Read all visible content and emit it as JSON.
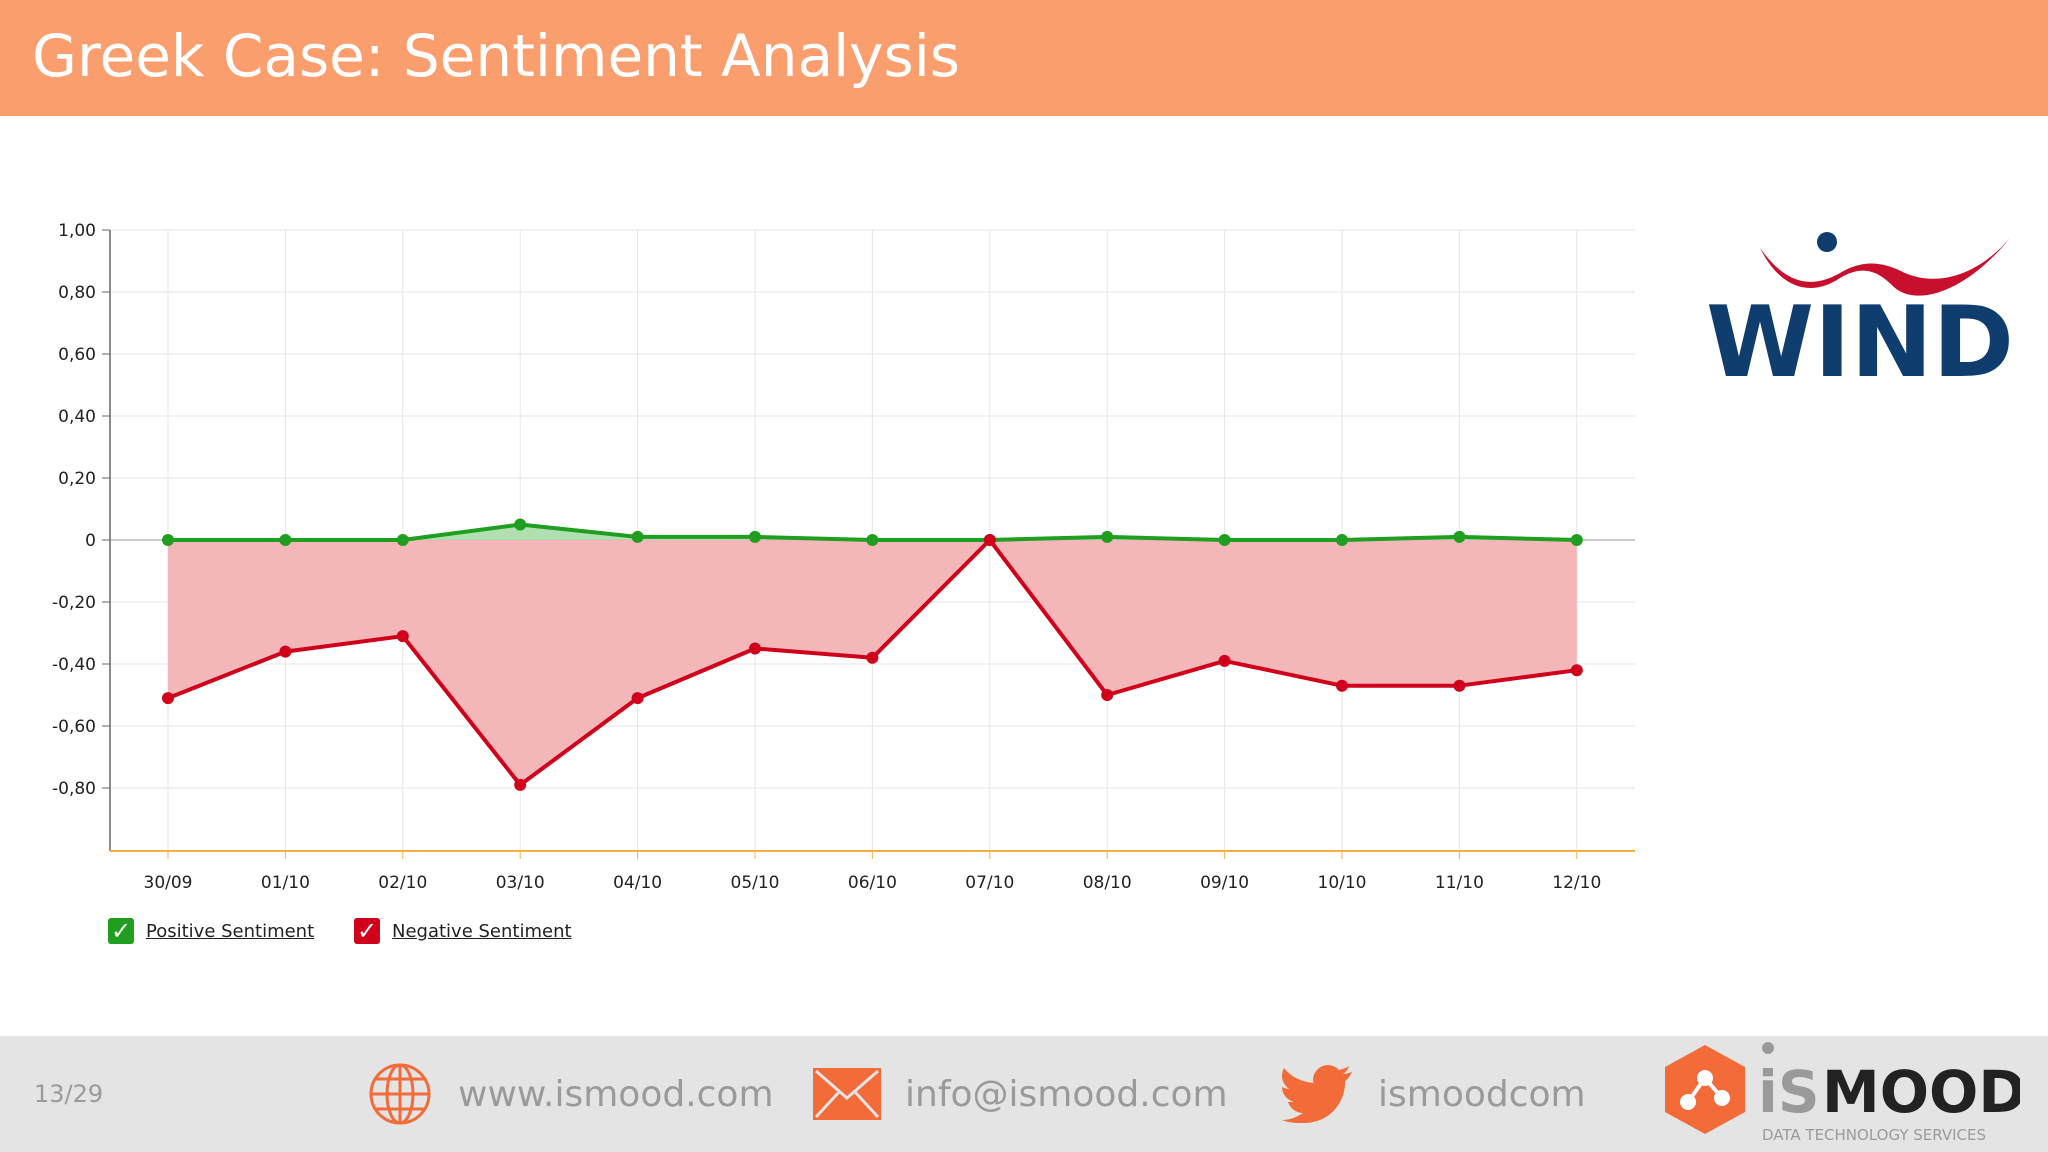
{
  "header": {
    "title": "Greek Case: Sentiment Analysis"
  },
  "colors": {
    "header_bg": "#fb9e6d",
    "positive": "#1f9e1f",
    "negative": "#d0021b",
    "negative_fill": "#f2b3b5",
    "positive_fill": "#a8dca8",
    "footer_bg": "#e4e4e4",
    "wind_blue": "#0f3d6e",
    "wind_red": "#c8102e",
    "ismood_orange": "#f26b38"
  },
  "chart_data": {
    "type": "area",
    "categories": [
      "30/09",
      "01/10",
      "02/10",
      "03/10",
      "04/10",
      "05/10",
      "06/10",
      "07/10",
      "08/10",
      "09/10",
      "10/10",
      "11/10",
      "12/10"
    ],
    "series": [
      {
        "name": "Positive Sentiment",
        "values": [
          0,
          0,
          0,
          0.05,
          0.01,
          0.01,
          0,
          0,
          0.01,
          0,
          0,
          0.01,
          0
        ]
      },
      {
        "name": "Negative Sentiment",
        "values": [
          -0.51,
          -0.36,
          -0.31,
          -0.79,
          -0.51,
          -0.35,
          -0.38,
          0,
          -0.5,
          -0.39,
          -0.47,
          -0.47,
          -0.42
        ]
      }
    ],
    "y_ticks": [
      "1,00",
      "0,80",
      "0,60",
      "0,40",
      "0,20",
      "0",
      "-0,20",
      "-0,40",
      "-0,60",
      "-0,80"
    ],
    "ylim": [
      -1.0,
      1.0
    ],
    "grid": true,
    "legend_position": "bottom-left"
  },
  "legend": [
    {
      "label": "Positive Sentiment",
      "icon": "check-icon"
    },
    {
      "label": "Negative Sentiment",
      "icon": "check-icon"
    }
  ],
  "wind_logo": {
    "text": "WIND"
  },
  "footer": {
    "page": "13/29",
    "website": "www.ismood.com",
    "email": "info@ismood.com",
    "twitter": "ismoodcom",
    "brand_is": "iS",
    "brand_mood": "MOOD",
    "brand_tagline": "DATA TECHNOLOGY SERVICES"
  }
}
